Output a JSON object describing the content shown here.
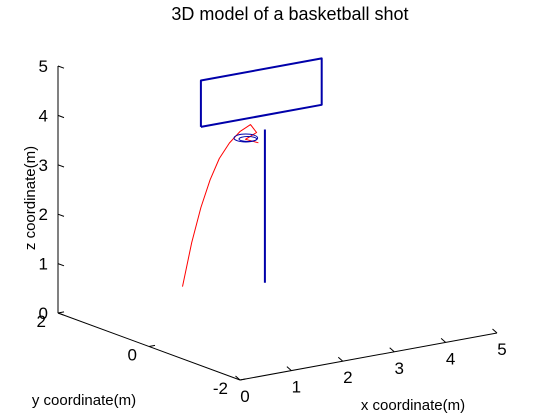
{
  "chart_data": {
    "type": "line",
    "title": "3D model of a basketball shot",
    "xlabel": "x coordinate(m)",
    "ylabel": "y coordinate(m)",
    "zlabel": "z coordinate(m)",
    "xlim": [
      0,
      5
    ],
    "ylim": [
      -2,
      2
    ],
    "zlim": [
      0,
      5
    ],
    "x_ticks": [
      "0",
      "1",
      "2",
      "3",
      "4",
      "5"
    ],
    "y_ticks": [
      "-2",
      "0",
      "2"
    ],
    "z_ticks": [
      "0",
      "1",
      "2",
      "3",
      "4",
      "5"
    ],
    "grid": false,
    "series": [
      {
        "role": "ball-trajectory",
        "color": "#ff0000",
        "points": [
          [
            -0.1,
            -0.85,
            1.52
          ],
          [
            0.3,
            -0.6,
            2.25
          ],
          [
            0.7,
            -0.35,
            2.8
          ],
          [
            1.1,
            -0.1,
            3.2
          ],
          [
            1.5,
            0.15,
            3.47
          ],
          [
            1.9,
            0.38,
            3.63
          ],
          [
            2.3,
            0.6,
            3.71
          ],
          [
            2.7,
            0.82,
            3.7
          ],
          [
            3.2,
            1.25,
            3.3
          ],
          [
            3.25,
            1.55,
            3.05
          ],
          [
            3.12,
            1.12,
            3.15
          ]
        ]
      },
      {
        "role": "backboard",
        "color": "#0000aa",
        "points": [
          [
            2.55,
            1.74,
            3.37
          ],
          [
            4.9,
            1.74,
            3.37
          ],
          [
            4.9,
            1.74,
            4.31
          ],
          [
            2.55,
            1.74,
            4.31
          ],
          [
            2.55,
            1.74,
            3.37
          ]
        ]
      },
      {
        "role": "pole",
        "color": "#0000aa",
        "points": [
          [
            3.76,
            1.7,
            3.1
          ],
          [
            3.76,
            1.7,
            0.0
          ]
        ]
      },
      {
        "role": "rim",
        "color": "#0000aa",
        "ellipse": {
          "center": [
            3.3,
            1.6,
            3.05
          ],
          "rx": 0.23,
          "rz": 0.03
        }
      }
    ]
  }
}
